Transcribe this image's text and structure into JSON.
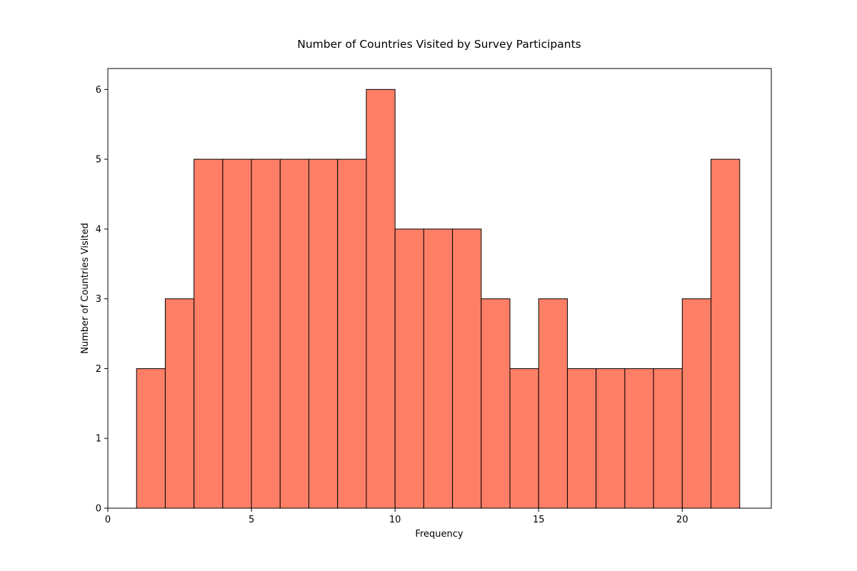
{
  "chart_data": {
    "type": "bar",
    "title": "Number of Countries Visited by Survey Participants",
    "xlabel": "Frequency",
    "ylabel": "Number of Countries Visited",
    "bins": [
      {
        "start": 1,
        "end": 2,
        "count": 2
      },
      {
        "start": 2,
        "end": 3,
        "count": 3
      },
      {
        "start": 3,
        "end": 4,
        "count": 5
      },
      {
        "start": 4,
        "end": 5,
        "count": 5
      },
      {
        "start": 5,
        "end": 6,
        "count": 5
      },
      {
        "start": 6,
        "end": 7,
        "count": 5
      },
      {
        "start": 7,
        "end": 8,
        "count": 5
      },
      {
        "start": 8,
        "end": 9,
        "count": 5
      },
      {
        "start": 9,
        "end": 10,
        "count": 6
      },
      {
        "start": 10,
        "end": 11,
        "count": 4
      },
      {
        "start": 11,
        "end": 12,
        "count": 4
      },
      {
        "start": 12,
        "end": 13,
        "count": 4
      },
      {
        "start": 13,
        "end": 14,
        "count": 3
      },
      {
        "start": 14,
        "end": 15,
        "count": 2
      },
      {
        "start": 15,
        "end": 16,
        "count": 3
      },
      {
        "start": 16,
        "end": 17,
        "count": 2
      },
      {
        "start": 17,
        "end": 18,
        "count": 2
      },
      {
        "start": 18,
        "end": 19,
        "count": 2
      },
      {
        "start": 19,
        "end": 20,
        "count": 2
      },
      {
        "start": 20,
        "end": 21,
        "count": 3
      },
      {
        "start": 21,
        "end": 22,
        "count": 5
      }
    ],
    "xlim": [
      0,
      23.1
    ],
    "ylim": [
      0,
      6.3
    ],
    "xticks": [
      "0",
      "5",
      "10",
      "15",
      "20"
    ],
    "yticks": [
      "0",
      "1",
      "2",
      "3",
      "4",
      "5",
      "6"
    ],
    "grid": false,
    "colors": {
      "bar_fill": "#ff7f66",
      "bar_edge": "#000000"
    }
  }
}
